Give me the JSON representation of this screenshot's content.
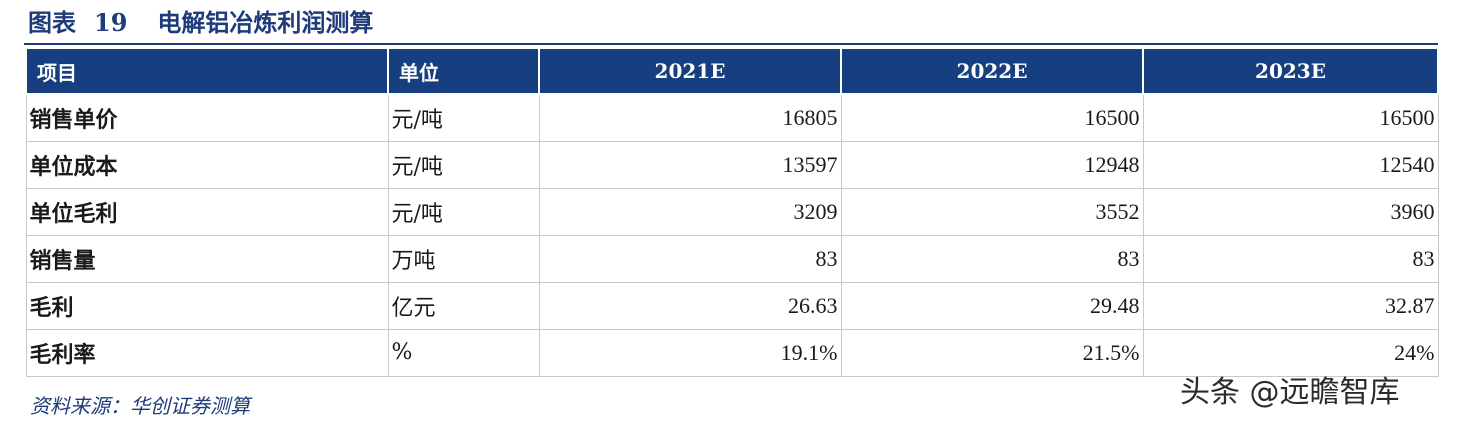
{
  "title": {
    "prefix": "图表",
    "number": "19",
    "text": "电解铝冶炼利润测算"
  },
  "table": {
    "headers": [
      "项目",
      "单位",
      "2021E",
      "2022E",
      "2023E"
    ],
    "rows": [
      {
        "item": "销售单价",
        "unit": "元/吨",
        "values": [
          "16805",
          "16500",
          "16500"
        ]
      },
      {
        "item": "单位成本",
        "unit": "元/吨",
        "values": [
          "13597",
          "12948",
          "12540"
        ]
      },
      {
        "item": "单位毛利",
        "unit": "元/吨",
        "values": [
          "3209",
          "3552",
          "3960"
        ]
      },
      {
        "item": "销售量",
        "unit": "万吨",
        "values": [
          "83",
          "83",
          "83"
        ]
      },
      {
        "item": "毛利",
        "unit": "亿元",
        "values": [
          "26.63",
          "29.48",
          "32.87"
        ]
      },
      {
        "item": "毛利率",
        "unit": "%",
        "values": [
          "19.1%",
          "21.5%",
          "24%"
        ]
      }
    ]
  },
  "source": "资料来源：华创证券测算",
  "watermark": "头条 @远瞻智库",
  "colors": {
    "header_bg": "#173f7f",
    "title": "#1f3b7a",
    "border": "#c9c9c9"
  }
}
